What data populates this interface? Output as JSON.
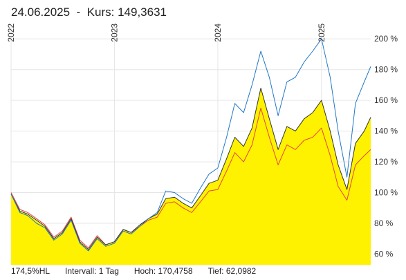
{
  "header": {
    "date": "24.06.2025",
    "separator": "-",
    "kurs_label": "Kurs:",
    "kurs_value": "149,3631"
  },
  "footer": {
    "hl": "174,5%HL",
    "intervall": "Intervall: 1 Tag",
    "hoch": "Hoch: 170,4758",
    "tief": "Tief: 62,0982"
  },
  "colors": {
    "area_fill": "#fff200",
    "main_line": "#333333",
    "blue_line": "#1f77c8",
    "red_line": "#e8413c",
    "grid": "#e6e6e6"
  },
  "chart_data": {
    "type": "area",
    "y_axis": {
      "position": "right",
      "ticks": [
        60,
        80,
        100,
        120,
        140,
        160,
        180,
        200
      ],
      "tick_labels": [
        "60 %",
        "80 %",
        "100 %",
        "120 %",
        "140 %",
        "160 %",
        "180 %",
        "200 %"
      ],
      "range": [
        53,
        210
      ]
    },
    "x_axis": {
      "range": [
        "2022-01-01",
        "2025-06-24"
      ],
      "ticks": [
        {
          "label": "2022",
          "date": "2022-01-01"
        },
        {
          "label": "2023",
          "date": "2023-01-01"
        },
        {
          "label": "2024",
          "date": "2024-01-01"
        },
        {
          "label": "2025",
          "date": "2025-01-01"
        }
      ]
    },
    "grid": true,
    "series": [
      {
        "kind": "area",
        "points": [
          [
            "2022-01-01",
            99
          ],
          [
            "2022-02-01",
            88
          ],
          [
            "2022-03-01",
            86
          ],
          [
            "2022-04-01",
            82
          ],
          [
            "2022-05-01",
            78
          ],
          [
            "2022-06-01",
            70
          ],
          [
            "2022-07-01",
            74
          ],
          [
            "2022-08-01",
            83
          ],
          [
            "2022-09-01",
            68
          ],
          [
            "2022-10-01",
            63
          ],
          [
            "2022-11-01",
            71
          ],
          [
            "2022-12-01",
            66
          ],
          [
            "2023-01-01",
            68
          ],
          [
            "2023-02-01",
            76
          ],
          [
            "2023-03-01",
            74
          ],
          [
            "2023-04-01",
            79
          ],
          [
            "2023-05-01",
            83
          ],
          [
            "2023-06-01",
            86
          ],
          [
            "2023-07-01",
            96
          ],
          [
            "2023-08-01",
            97
          ],
          [
            "2023-09-01",
            93
          ],
          [
            "2023-10-01",
            90
          ],
          [
            "2023-11-01",
            98
          ],
          [
            "2023-12-01",
            106
          ],
          [
            "2024-01-01",
            108
          ],
          [
            "2024-02-01",
            122
          ],
          [
            "2024-03-01",
            136
          ],
          [
            "2024-04-01",
            130
          ],
          [
            "2024-05-01",
            142
          ],
          [
            "2024-06-01",
            168
          ],
          [
            "2024-07-01",
            148
          ],
          [
            "2024-08-01",
            128
          ],
          [
            "2024-09-01",
            143
          ],
          [
            "2024-10-01",
            140
          ],
          [
            "2024-11-01",
            148
          ],
          [
            "2024-12-01",
            152
          ],
          [
            "2025-01-01",
            160
          ],
          [
            "2025-02-01",
            140
          ],
          [
            "2025-03-01",
            118
          ],
          [
            "2025-04-01",
            102
          ],
          [
            "2025-05-01",
            132
          ],
          [
            "2025-06-01",
            140
          ],
          [
            "2025-06-24",
            149
          ]
        ]
      },
      {
        "kind": "line",
        "points": [
          [
            "2022-01-01",
            99
          ],
          [
            "2022-02-01",
            87
          ],
          [
            "2022-03-01",
            85
          ],
          [
            "2022-04-01",
            80
          ],
          [
            "2022-05-01",
            77
          ],
          [
            "2022-06-01",
            69
          ],
          [
            "2022-07-01",
            73
          ],
          [
            "2022-08-01",
            82
          ],
          [
            "2022-09-01",
            67
          ],
          [
            "2022-10-01",
            62
          ],
          [
            "2022-11-01",
            70
          ],
          [
            "2022-12-01",
            65
          ],
          [
            "2023-01-01",
            67
          ],
          [
            "2023-02-01",
            75
          ],
          [
            "2023-03-01",
            73
          ],
          [
            "2023-04-01",
            78
          ],
          [
            "2023-05-01",
            83
          ],
          [
            "2023-06-01",
            87
          ],
          [
            "2023-07-01",
            101
          ],
          [
            "2023-08-01",
            100
          ],
          [
            "2023-09-01",
            96
          ],
          [
            "2023-10-01",
            93
          ],
          [
            "2023-11-01",
            103
          ],
          [
            "2023-12-01",
            112
          ],
          [
            "2024-01-01",
            116
          ],
          [
            "2024-02-01",
            136
          ],
          [
            "2024-03-01",
            158
          ],
          [
            "2024-04-01",
            152
          ],
          [
            "2024-05-01",
            170
          ],
          [
            "2024-06-01",
            192
          ],
          [
            "2024-07-01",
            175
          ],
          [
            "2024-08-01",
            150
          ],
          [
            "2024-09-01",
            172
          ],
          [
            "2024-10-01",
            175
          ],
          [
            "2024-11-01",
            185
          ],
          [
            "2024-12-01",
            192
          ],
          [
            "2025-01-01",
            200
          ],
          [
            "2025-02-01",
            175
          ],
          [
            "2025-03-01",
            140
          ],
          [
            "2025-04-01",
            110
          ],
          [
            "2025-05-01",
            158
          ],
          [
            "2025-06-01",
            172
          ],
          [
            "2025-06-24",
            182
          ]
        ]
      },
      {
        "kind": "line",
        "points": [
          [
            "2022-01-01",
            100
          ],
          [
            "2022-02-01",
            89
          ],
          [
            "2022-03-01",
            87
          ],
          [
            "2022-04-01",
            83
          ],
          [
            "2022-05-01",
            79
          ],
          [
            "2022-06-01",
            71
          ],
          [
            "2022-07-01",
            75
          ],
          [
            "2022-08-01",
            84
          ],
          [
            "2022-09-01",
            69
          ],
          [
            "2022-10-01",
            64
          ],
          [
            "2022-11-01",
            72
          ],
          [
            "2022-12-01",
            66
          ],
          [
            "2023-01-01",
            68
          ],
          [
            "2023-02-01",
            76
          ],
          [
            "2023-03-01",
            74
          ],
          [
            "2023-04-01",
            78
          ],
          [
            "2023-05-01",
            82
          ],
          [
            "2023-06-01",
            84
          ],
          [
            "2023-07-01",
            93
          ],
          [
            "2023-08-01",
            94
          ],
          [
            "2023-09-01",
            90
          ],
          [
            "2023-10-01",
            87
          ],
          [
            "2023-11-01",
            94
          ],
          [
            "2023-12-01",
            101
          ],
          [
            "2024-01-01",
            102
          ],
          [
            "2024-02-01",
            114
          ],
          [
            "2024-03-01",
            126
          ],
          [
            "2024-04-01",
            120
          ],
          [
            "2024-05-01",
            131
          ],
          [
            "2024-06-01",
            155
          ],
          [
            "2024-07-01",
            136
          ],
          [
            "2024-08-01",
            118
          ],
          [
            "2024-09-01",
            131
          ],
          [
            "2024-10-01",
            128
          ],
          [
            "2024-11-01",
            134
          ],
          [
            "2024-12-01",
            136
          ],
          [
            "2025-01-01",
            142
          ],
          [
            "2025-02-01",
            124
          ],
          [
            "2025-03-01",
            104
          ],
          [
            "2025-04-01",
            95
          ],
          [
            "2025-05-01",
            118
          ],
          [
            "2025-06-01",
            124
          ],
          [
            "2025-06-24",
            128
          ]
        ]
      }
    ]
  }
}
